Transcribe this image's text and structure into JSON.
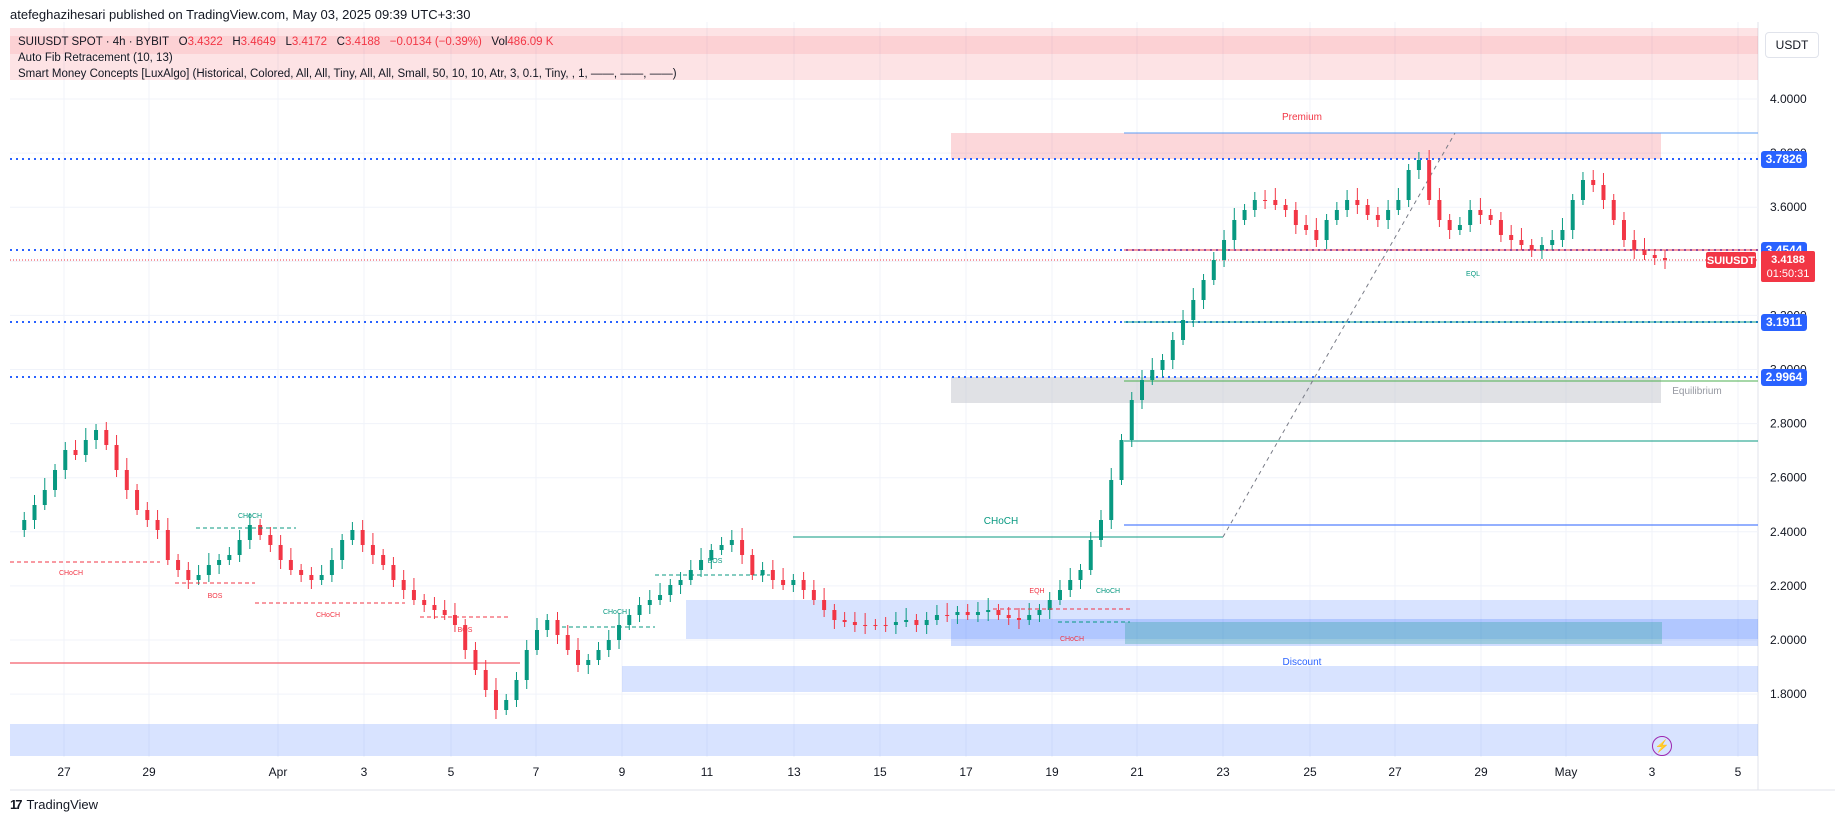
{
  "header": {
    "credit": "atefeghazihesari published on TradingView.com, May 03, 2025 09:39 UTC+3:30"
  },
  "legend": {
    "symbol": "SUIUSDT SPOT · 4h · BYBIT",
    "o_label": "O",
    "o_value": "3.4322",
    "h_label": "H",
    "h_value": "3.4649",
    "l_label": "L",
    "l_value": "3.4172",
    "c_label": "C",
    "c_value": "3.4188",
    "change": "−0.0134 (−0.39%)",
    "vol_label": "Vol",
    "vol_value": "486.09 K",
    "indicator1": "Auto Fib Retracement (10, 13)",
    "indicator2": "Smart Money Concepts [LuxAlgo] (Historical, Colored, All, All, Tiny, All, All, Small, 50, 10, 10, Atr, 3, 0.1, Tiny, , 1, ——, ——, ——)"
  },
  "currency_button": "USDT",
  "brand": {
    "logo": "17",
    "name": "TradingView"
  },
  "colors": {
    "up": "#089981",
    "down": "#f23645",
    "fib_blue": "#2962ff",
    "price_tag": "#f23645"
  },
  "chart_data": {
    "type": "candlestick",
    "y_ticks": [
      "4.0000",
      "3.8000",
      "3.6000",
      "3.4000",
      "3.2000",
      "3.0000",
      "2.8000",
      "2.6000",
      "2.4000",
      "2.2000",
      "2.0000",
      "1.8000"
    ],
    "x_ticks": [
      "27",
      "29",
      "Apr",
      "3",
      "5",
      "7",
      "9",
      "11",
      "13",
      "15",
      "17",
      "19",
      "21",
      "23",
      "25",
      "27",
      "29",
      "May",
      "3",
      "5"
    ],
    "price_labels": [
      {
        "value": "3.7826"
      },
      {
        "value": "3.4544"
      },
      {
        "value": "3.1911"
      },
      {
        "value": "2.9964"
      }
    ],
    "current_price": {
      "symbol": "SUIUSDT",
      "value": "3.4188",
      "countdown": "01:50:31"
    },
    "zone_labels": {
      "premium": "Premium",
      "equilibrium": "Equilibrium",
      "discount": "Discount"
    },
    "structure_labels": [
      {
        "text": "CHoCH",
        "color": "green"
      },
      {
        "text": "CHoCH",
        "color": "red"
      },
      {
        "text": "BOS",
        "color": "red"
      },
      {
        "text": "CHoCH",
        "color": "red"
      },
      {
        "text": "BOS",
        "color": "red"
      },
      {
        "text": "CHoCH",
        "color": "green"
      },
      {
        "text": "BOS",
        "color": "green"
      },
      {
        "text": "CHoCH",
        "color": "green"
      },
      {
        "text": "EQH",
        "color": "red"
      },
      {
        "text": "CHoCH",
        "color": "green"
      },
      {
        "text": "CHoCH",
        "color": "red"
      },
      {
        "text": "EQL",
        "color": "green"
      }
    ]
  }
}
